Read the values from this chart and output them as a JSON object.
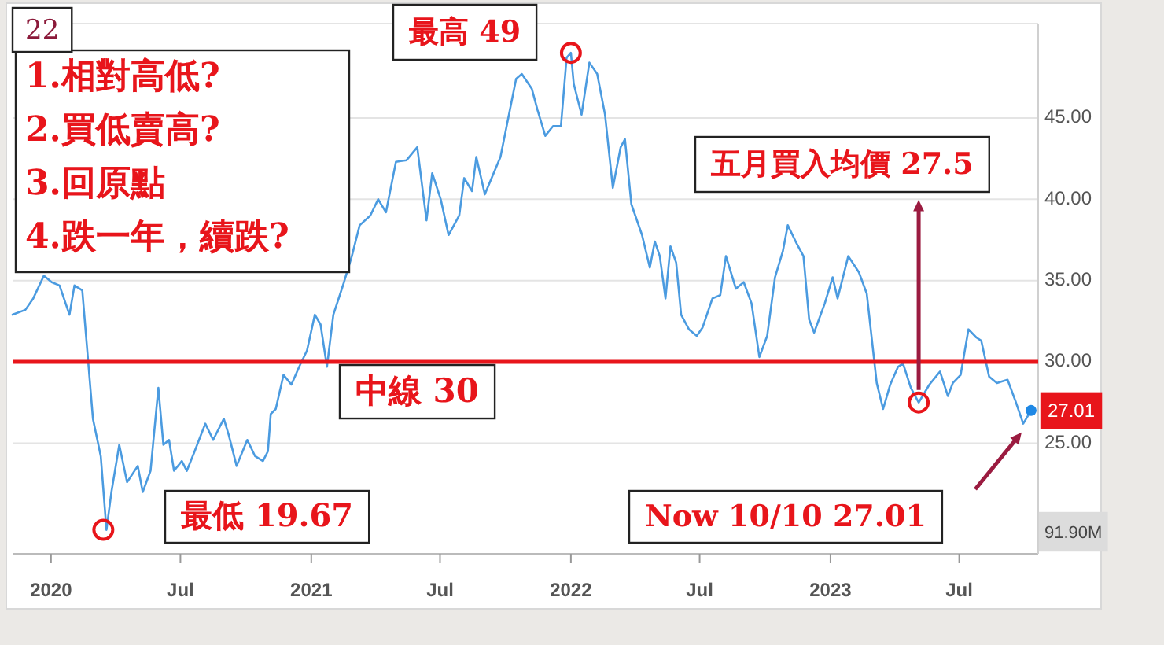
{
  "chart_data": {
    "type": "line",
    "x": [
      "2019-11-08",
      "2019-11-26",
      "2019-12-07",
      "2019-12-22",
      "2020-01-02",
      "2020-01-13",
      "2020-01-27",
      "2020-02-03",
      "2020-02-14",
      "2020-02-29",
      "2020-03-11",
      "2020-03-19",
      "2020-03-26",
      "2020-04-06",
      "2020-04-17",
      "2020-05-02",
      "2020-05-09",
      "2020-05-20",
      "2020-05-31",
      "2020-06-07",
      "2020-06-15",
      "2020-06-22",
      "2020-07-03",
      "2020-07-10",
      "2020-07-21",
      "2020-08-05",
      "2020-08-16",
      "2020-08-31",
      "2020-09-07",
      "2020-09-18",
      "2020-10-03",
      "2020-10-14",
      "2020-10-25",
      "2020-11-01",
      "2020-11-05",
      "2020-11-12",
      "2020-11-23",
      "2020-12-04",
      "2020-12-15",
      "2020-12-26",
      "2021-01-06",
      "2021-01-14",
      "2021-01-23",
      "2021-02-01",
      "2021-02-16",
      "2021-02-27",
      "2021-03-10",
      "2021-03-25",
      "2021-04-05",
      "2021-04-16",
      "2021-04-30",
      "2021-05-15",
      "2021-05-30",
      "2021-06-12",
      "2021-06-20",
      "2021-07-02",
      "2021-07-13",
      "2021-07-28",
      "2021-08-04",
      "2021-08-15",
      "2021-08-21",
      "2021-09-02",
      "2021-09-24",
      "2021-10-16",
      "2021-10-24",
      "2021-11-07",
      "2021-11-15",
      "2021-11-26",
      "2021-12-07",
      "2021-12-18",
      "2021-12-26",
      "2022-01-01",
      "2022-01-05",
      "2022-01-16",
      "2022-01-27",
      "2022-02-07",
      "2022-02-18",
      "2022-03-01",
      "2022-03-12",
      "2022-03-18",
      "2022-03-27",
      "2022-04-11",
      "2022-04-22",
      "2022-04-29",
      "2022-05-06",
      "2022-05-14",
      "2022-05-21",
      "2022-05-29",
      "2022-06-05",
      "2022-06-16",
      "2022-06-27",
      "2022-07-05",
      "2022-07-19",
      "2022-07-30",
      "2022-08-07",
      "2022-08-21",
      "2022-09-01",
      "2022-09-12",
      "2022-09-23",
      "2022-10-04",
      "2022-10-15",
      "2022-10-26",
      "2022-11-02",
      "2022-11-13",
      "2022-11-24",
      "2022-12-02",
      "2022-12-09",
      "2022-12-24",
      "2023-01-04",
      "2023-01-11",
      "2023-01-26",
      "2023-02-10",
      "2023-02-21",
      "2023-03-07",
      "2023-03-16",
      "2023-03-26",
      "2023-04-06",
      "2023-04-13",
      "2023-04-24",
      "2023-05-05",
      "2023-05-20",
      "2023-06-04",
      "2023-06-15",
      "2023-06-22",
      "2023-07-03",
      "2023-07-14",
      "2023-07-25",
      "2023-08-01",
      "2023-08-12",
      "2023-08-23",
      "2023-09-07",
      "2023-09-18",
      "2023-09-29",
      "2023-10-10"
    ],
    "series": [
      {
        "color": "#4b9be0",
        "values": [
          32.9,
          33.2,
          33.9,
          35.3,
          34.9,
          34.7,
          32.9,
          34.7,
          34.4,
          26.5,
          24.2,
          19.67,
          22.0,
          24.9,
          22.6,
          23.6,
          22.0,
          23.3,
          28.4,
          24.9,
          25.2,
          23.3,
          23.9,
          23.3,
          24.5,
          26.2,
          25.2,
          26.5,
          25.5,
          23.6,
          25.2,
          24.2,
          23.9,
          24.5,
          26.8,
          27.1,
          29.2,
          28.6,
          29.7,
          30.7,
          32.9,
          32.3,
          29.7,
          32.9,
          34.9,
          36.5,
          38.4,
          39.0,
          40.0,
          39.2,
          42.3,
          42.4,
          43.2,
          38.7,
          41.6,
          40.0,
          37.8,
          39.0,
          41.3,
          40.5,
          42.6,
          40.3,
          42.6,
          47.4,
          47.7,
          46.8,
          45.5,
          43.9,
          44.5,
          44.5,
          48.7,
          49.0,
          47.1,
          45.2,
          48.4,
          47.7,
          45.2,
          40.7,
          43.2,
          43.7,
          39.7,
          37.8,
          35.8,
          37.4,
          36.5,
          33.9,
          37.1,
          36.1,
          32.9,
          32.0,
          31.6,
          32.1,
          33.9,
          34.1,
          36.5,
          34.5,
          34.9,
          33.6,
          30.3,
          31.6,
          35.2,
          36.8,
          38.4,
          37.4,
          36.5,
          32.6,
          31.8,
          33.6,
          35.2,
          33.9,
          36.5,
          35.5,
          34.2,
          28.7,
          27.1,
          28.6,
          29.7,
          29.9,
          28.4,
          27.5,
          28.6,
          29.4,
          27.9,
          28.7,
          29.2,
          32.0,
          31.5,
          31.3,
          29.1,
          28.7,
          28.9,
          27.6,
          26.2,
          27.01
        ]
      }
    ],
    "xlim": [
      "2019-11-08",
      "2023-10-20"
    ],
    "xticks": [
      {
        "value": "2020-01-01",
        "label": "2020"
      },
      {
        "value": "2020-07-01",
        "label": "Jul"
      },
      {
        "value": "2021-01-01",
        "label": "2021"
      },
      {
        "value": "2021-07-01",
        "label": "Jul"
      },
      {
        "value": "2022-01-01",
        "label": "2022"
      },
      {
        "value": "2022-07-01",
        "label": "Jul"
      },
      {
        "value": "2023-01-01",
        "label": "2023"
      },
      {
        "value": "2023-07-01",
        "label": "Jul"
      }
    ],
    "ylim": [
      18.2,
      50.8
    ],
    "yticks": [
      {
        "value": 25,
        "label": "25.00"
      },
      {
        "value": 30,
        "label": "30.00"
      },
      {
        "value": 35,
        "label": "35.00"
      },
      {
        "value": 40,
        "label": "40.00"
      },
      {
        "value": 45,
        "label": "45.00"
      }
    ],
    "grid": "y",
    "ref_lines": [
      {
        "axis": "y",
        "value": 30,
        "label": "中線 30",
        "color": "#e8151b"
      }
    ],
    "annotations": [
      "22",
      "1.相對高低?",
      "2.買低賣高?",
      "3.回原點",
      "4.跌一年，續跌?",
      {
        "text": "最高 49",
        "x": "2022-01-01",
        "y": 49
      },
      {
        "text": "最低 19.67",
        "x": "2020-03-19",
        "y": 19.67
      },
      {
        "text": "五月買入均價 27.5",
        "x": "2023-05-05",
        "y": 27.5
      },
      "Now 10/10 27.01",
      "91.90M",
      {
        "text": "27.01",
        "x": "2023-10-10",
        "y": 27.01
      }
    ]
  }
}
